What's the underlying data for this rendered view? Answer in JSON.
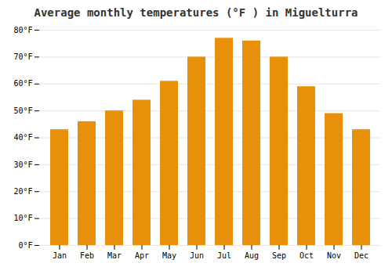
{
  "chart_data": {
    "type": "bar",
    "title": "Average monthly temperatures (°F ) in Miguelturra",
    "categories": [
      "Jan",
      "Feb",
      "Mar",
      "Apr",
      "May",
      "Jun",
      "Jul",
      "Aug",
      "Sep",
      "Oct",
      "Nov",
      "Dec"
    ],
    "values": [
      43,
      46,
      50,
      54,
      61,
      70,
      77,
      76,
      70,
      59,
      49,
      43
    ],
    "color": "#E8900A",
    "ylim": [
      0,
      80
    ],
    "yticks": [
      {
        "value": 0,
        "label": "0°F"
      },
      {
        "value": 10,
        "label": "10°F"
      },
      {
        "value": 20,
        "label": "20°F"
      },
      {
        "value": 30,
        "label": "30°F"
      },
      {
        "value": 40,
        "label": "40°F"
      },
      {
        "value": 50,
        "label": "50°F"
      },
      {
        "value": 60,
        "label": "60°F"
      },
      {
        "value": 70,
        "label": "70°F"
      },
      {
        "value": 80,
        "label": "80°F"
      }
    ],
    "grid": true
  }
}
